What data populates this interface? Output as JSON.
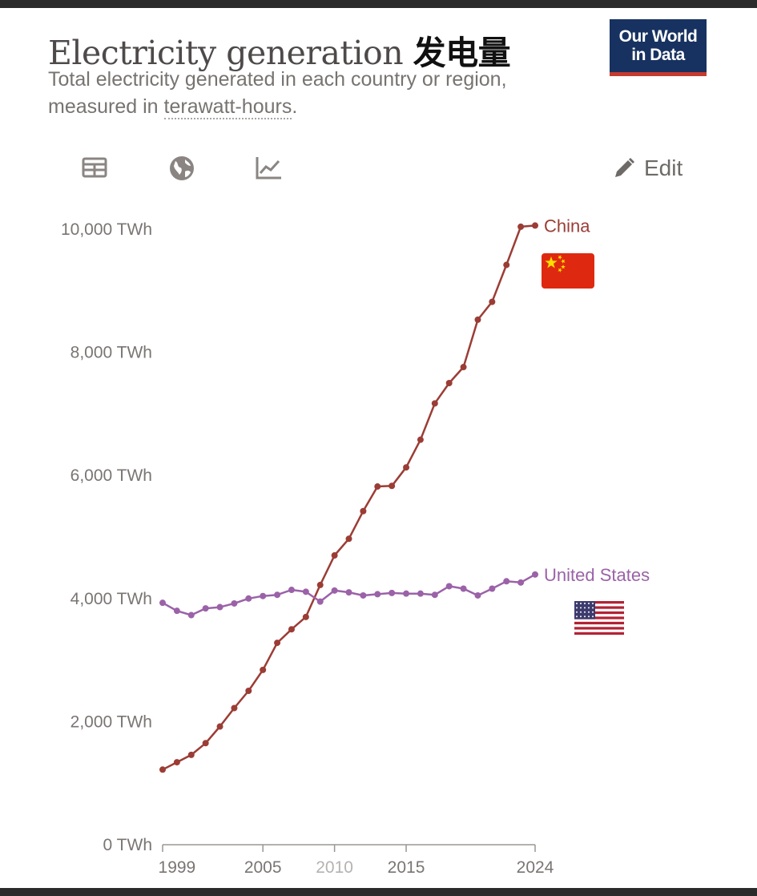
{
  "header": {
    "title": "Electricity generation",
    "title_cn": "发电量",
    "subtitle_line1": "Total electricity generated in each country or region,",
    "subtitle_prefix": "measured in ",
    "subtitle_unit": "terawatt-hours",
    "subtitle_suffix": ".",
    "logo_line1": "Our World",
    "logo_line2": "in Data"
  },
  "toolbar": {
    "table_icon": "table-icon",
    "map_icon": "globe-icon",
    "chart_icon": "line-chart-icon",
    "edit_label": "Edit"
  },
  "colors": {
    "china": "#9b3d35",
    "united_states": "#9b62a8",
    "axis": "#9a9593"
  },
  "chart_data": {
    "type": "line",
    "title": "Electricity generation",
    "x_range": [
      1998,
      2024
    ],
    "y_range": [
      0,
      10000
    ],
    "y_ticks": [
      0,
      2000,
      4000,
      6000,
      8000,
      10000
    ],
    "y_tick_labels": [
      "0 TWh",
      "2,000 TWh",
      "4,000 TWh",
      "6,000 TWh",
      "8,000 TWh",
      "10,000 TWh"
    ],
    "x_tick_labels": [
      "1999",
      "2005",
      "2015",
      "2024"
    ],
    "x_tick_values": [
      1999,
      2005,
      2015,
      2024
    ],
    "x_label_blurred": "2010",
    "grid": false,
    "series": [
      {
        "name": "China",
        "key": "china",
        "flag": "🇨🇳",
        "x": [
          1998,
          1999,
          2000,
          2001,
          2002,
          2003,
          2004,
          2005,
          2006,
          2007,
          2008,
          2009,
          2010,
          2011,
          2012,
          2013,
          2014,
          2015,
          2016,
          2017,
          2018,
          2019,
          2020,
          2021,
          2022,
          2023,
          2024
        ],
        "values": [
          1220,
          1340,
          1460,
          1650,
          1920,
          2220,
          2500,
          2840,
          3280,
          3500,
          3700,
          4220,
          4700,
          4970,
          5420,
          5820,
          5830,
          6130,
          6580,
          7170,
          7500,
          7760,
          8530,
          8820,
          9420,
          10040,
          10060
        ]
      },
      {
        "name": "United States",
        "key": "united_states",
        "flag": "🇺🇸",
        "x": [
          1998,
          1999,
          2000,
          2001,
          2002,
          2003,
          2004,
          2005,
          2006,
          2007,
          2008,
          2009,
          2010,
          2011,
          2012,
          2013,
          2014,
          2015,
          2016,
          2017,
          2018,
          2019,
          2020,
          2021,
          2022,
          2023,
          2024
        ],
        "values": [
          3930,
          3800,
          3730,
          3840,
          3860,
          3920,
          4000,
          4040,
          4060,
          4140,
          4110,
          3950,
          4130,
          4100,
          4050,
          4070,
          4090,
          4080,
          4080,
          4060,
          4200,
          4160,
          4050,
          4160,
          4280,
          4260,
          4390
        ]
      }
    ]
  }
}
